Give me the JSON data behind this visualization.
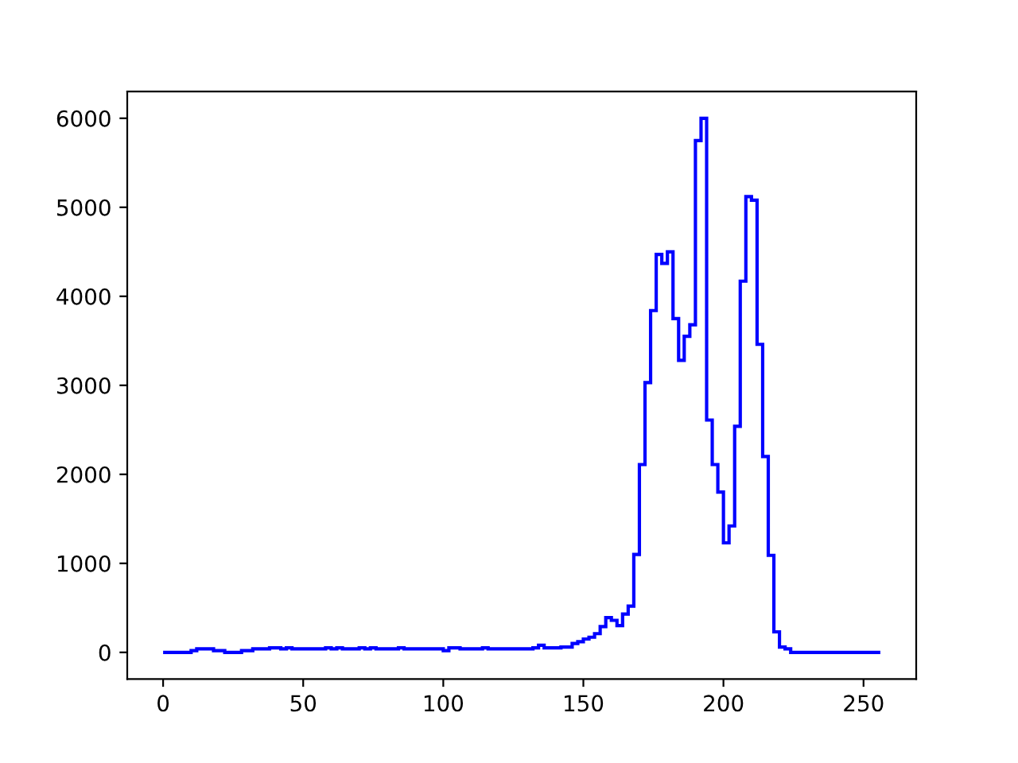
{
  "chart_data": {
    "type": "histogram",
    "color": "#0000ff",
    "bins": [
      0,
      2,
      4,
      6,
      8,
      10,
      12,
      14,
      16,
      18,
      20,
      22,
      24,
      26,
      28,
      30,
      32,
      34,
      36,
      38,
      40,
      42,
      44,
      46,
      48,
      50,
      52,
      54,
      56,
      58,
      60,
      62,
      64,
      66,
      68,
      70,
      72,
      74,
      76,
      78,
      80,
      82,
      84,
      86,
      88,
      90,
      92,
      94,
      96,
      98,
      100,
      102,
      104,
      106,
      108,
      110,
      112,
      114,
      116,
      118,
      120,
      122,
      124,
      126,
      128,
      130,
      132,
      134,
      136,
      138,
      140,
      142,
      144,
      146,
      148,
      150,
      152,
      154,
      156,
      158,
      160,
      162,
      164,
      166,
      168,
      170,
      172,
      174,
      176,
      178,
      180,
      182,
      184,
      186,
      188,
      190,
      192,
      194,
      196,
      198,
      200,
      202,
      204,
      206,
      208,
      210,
      212,
      214,
      216,
      218,
      220,
      222,
      224,
      226,
      228,
      230,
      232,
      234,
      236,
      238,
      240,
      242,
      244,
      246,
      248,
      250,
      252,
      254,
      256
    ],
    "values": [
      0,
      0,
      0,
      0,
      0,
      20,
      40,
      40,
      40,
      20,
      20,
      0,
      0,
      0,
      20,
      20,
      40,
      40,
      40,
      50,
      50,
      40,
      50,
      40,
      40,
      40,
      40,
      40,
      40,
      50,
      40,
      50,
      40,
      40,
      40,
      50,
      40,
      50,
      40,
      40,
      40,
      40,
      50,
      40,
      40,
      40,
      40,
      40,
      40,
      40,
      20,
      50,
      50,
      40,
      40,
      40,
      40,
      50,
      40,
      40,
      40,
      40,
      40,
      40,
      40,
      40,
      50,
      80,
      50,
      50,
      50,
      60,
      60,
      100,
      120,
      150,
      170,
      210,
      290,
      390,
      360,
      300,
      430,
      520,
      1100,
      2110,
      3030,
      3840,
      4470,
      4370,
      4500,
      3750,
      3280,
      3550,
      3680,
      5750,
      6000,
      2610,
      2110,
      1800,
      1230,
      1420,
      2540,
      4170,
      5120,
      5080,
      3460,
      2200,
      1090,
      230,
      60,
      40,
      0,
      0,
      0,
      0,
      0,
      0,
      0,
      0,
      0,
      0,
      0,
      0,
      0,
      0,
      0,
      0
    ],
    "xlim": [
      -12.8,
      268.8
    ],
    "ylim": [
      -300,
      6300
    ],
    "xticks": [
      0,
      50,
      100,
      150,
      200,
      250
    ],
    "yticks": [
      0,
      1000,
      2000,
      3000,
      4000,
      5000,
      6000
    ],
    "grid": false
  }
}
